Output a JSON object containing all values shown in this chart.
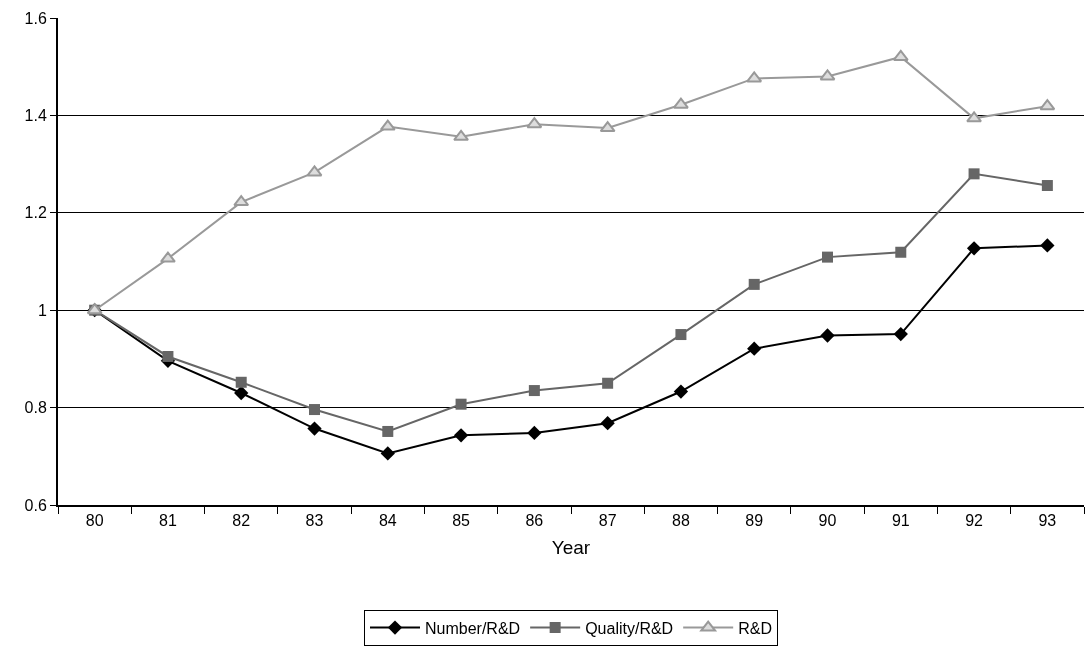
{
  "chart_data": {
    "type": "line",
    "xlabel": "Year",
    "categories": [
      "80",
      "81",
      "82",
      "83",
      "84",
      "85",
      "86",
      "87",
      "88",
      "89",
      "90",
      "91",
      "92",
      "93"
    ],
    "series": [
      {
        "name": "Number/R&D",
        "color": "#000000",
        "marker": "diamond",
        "values": [
          1.0,
          0.896,
          0.83,
          0.757,
          0.706,
          0.743,
          0.748,
          0.768,
          0.833,
          0.921,
          0.948,
          0.951,
          1.127,
          1.133
        ]
      },
      {
        "name": "Quality/R&D",
        "color": "#666666",
        "marker": "square",
        "values": [
          1.0,
          0.905,
          0.852,
          0.796,
          0.751,
          0.807,
          0.835,
          0.85,
          0.95,
          1.053,
          1.109,
          1.119,
          1.28,
          1.256
        ]
      },
      {
        "name": "R&D",
        "color": "#999999",
        "marker": "triangle",
        "values": [
          1.0,
          1.106,
          1.222,
          1.283,
          1.377,
          1.356,
          1.382,
          1.374,
          1.422,
          1.476,
          1.48,
          1.52,
          1.394,
          1.419
        ]
      }
    ],
    "ylim": [
      0.6,
      1.6
    ],
    "yticks": [
      0.6,
      0.8,
      1,
      1.2,
      1.4,
      1.6
    ],
    "grid": "y",
    "legend": "bottom",
    "line_style": "solid"
  }
}
